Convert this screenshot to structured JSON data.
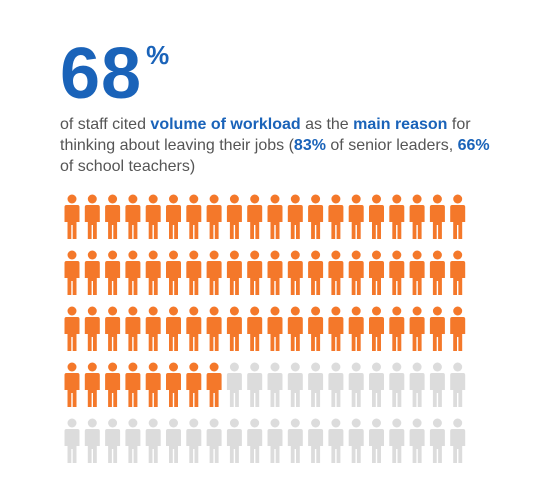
{
  "headline": {
    "number": "68",
    "unit": "%"
  },
  "description": {
    "seg1": "of staff cited ",
    "seg2": "volume of workload",
    "seg3": " as the ",
    "seg4": "main reason",
    "seg5": " for thinking about leaving their jobs (",
    "seg6": "83%",
    "seg7": " of senior leaders, ",
    "seg8": "66%",
    "seg9": " of school teachers)"
  },
  "pictogram": {
    "total_figures": 100,
    "highlighted_figures": 68,
    "icon": "person-icon",
    "highlight_color": "#f4782a",
    "base_color": "#dcdcdc"
  },
  "colors": {
    "accent": "#1a63b9",
    "text": "#555555"
  }
}
